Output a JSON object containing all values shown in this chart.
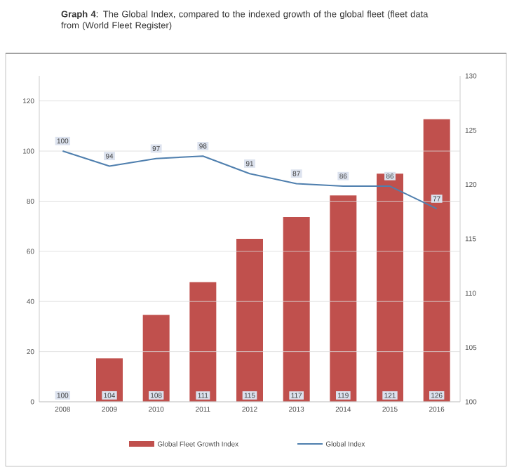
{
  "chart_data": {
    "type": "bar",
    "title": "**Graph 4**: The Global Index, compared to the indexed growth of the global fleet (fleet data from (World Fleet Register)",
    "categories": [
      "2008",
      "2009",
      "2010",
      "2011",
      "2012",
      "2013",
      "2014",
      "2015",
      "2016"
    ],
    "series": [
      {
        "name": "Global Fleet Growth Index",
        "axis": "y2",
        "color": "#c0504d",
        "values": [
          100,
          104,
          108,
          111,
          115,
          117,
          119,
          121,
          126
        ]
      },
      {
        "name": "Global Index",
        "type": "line",
        "color": "#4f7fae",
        "values": [
          100,
          94,
          97,
          98,
          91,
          87,
          86,
          86,
          77
        ]
      }
    ],
    "ylim": [
      0,
      130
    ],
    "yticks": [
      0,
      20,
      40,
      60,
      80,
      100,
      120
    ],
    "y2lim": [
      100,
      130
    ],
    "y2ticks": [
      100,
      105,
      110,
      115,
      120,
      125,
      130
    ],
    "grid": "y",
    "legend": "bottom",
    "data_labels": true,
    "line_style": "solid",
    "marker": "none"
  }
}
